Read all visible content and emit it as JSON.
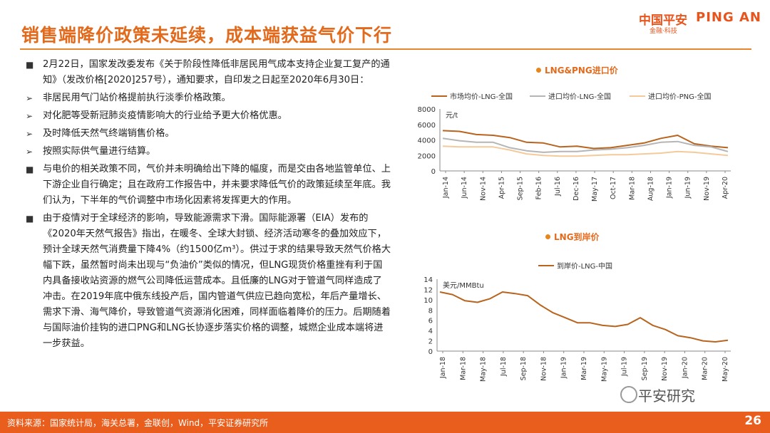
{
  "header": {
    "title": "销售端降价政策未延续，成本端获益气价下行",
    "logo_cn": "中国平安",
    "logo_en": "PING AN",
    "logo_sub": "金融·科技"
  },
  "content": {
    "items": [
      {
        "marker": "■",
        "text": "2月22日，国家发改委发布《关于阶段性降低非居民用气成本支持企业复工复产的通知》（发改价格[2020]257号），通知要求，自印发之日起至2020年6月30日："
      },
      {
        "marker": "➢",
        "text": "非居民用气门站价格提前执行淡季价格政策。"
      },
      {
        "marker": "➢",
        "text": "对化肥等受新冠肺炎疫情影响大的行业给予更大价格优惠。"
      },
      {
        "marker": "➢",
        "text": "及时降低天然气终端销售价格。"
      },
      {
        "marker": "➢",
        "text": "按照实际供气量进行结算。"
      },
      {
        "marker": "■",
        "text": "与电价的相关政策不同，气价并未明确给出下降的幅度，而是交由各地监管单位、上下游企业自行确定；且在政府工作报告中，并未要求降低气价的政策延续至年底。我们认为，下半年的气价调整中市场化因素将发挥更大的作用。"
      },
      {
        "marker": "■",
        "text": "由于疫情对于全球经济的影响，导致能源需求下滑。国际能源署（EIA）发布的《2020年天然气报告》指出，在暖冬、全球大封锁、经济活动寒冬的叠加效应下，预计全球天然气消费量下降4%（约1500亿m³）。供过于求的结果导致天然气价格大幅下跌，虽然暂时尚未出现与“负油价”类似的情况，但LNG现货价格重挫有利于国内具备接收站资源的燃气公司降低运营成本。且低廉的LNG对于管道气同样造成了冲击。在2019年底中俄东线投产后，国内管道气供应已趋向宽松，年后产量增长、需求下滑、海气降价，导致管道气资源消化困难，同样面临着降价的压力。后期随着与国际油价挂钩的进口PNG和LNG长协逐步落实价格的调整，城燃企业成本端将进一步获益。"
      }
    ]
  },
  "chart_data": [
    {
      "type": "line",
      "title": "LNG&PNG进口价",
      "ylabel": "元/t",
      "ylim": [
        0,
        8000
      ],
      "yticks": [
        0,
        2000,
        4000,
        6000,
        8000
      ],
      "xticks": [
        "Jan-14",
        "Jun-14",
        "Nov-14",
        "Apr-15",
        "Sep-15",
        "Feb-16",
        "Jul-16",
        "Dec-16",
        "May-17",
        "Oct-17",
        "Mar-18",
        "Aug-18",
        "Jan-19",
        "Jun-19",
        "Nov-19",
        "Apr-20"
      ],
      "series": [
        {
          "name": "市场均价-LNG-全国",
          "color": "#b8641e",
          "values": [
            5200,
            5100,
            4700,
            4600,
            4300,
            3700,
            3600,
            3100,
            3200,
            2900,
            3000,
            3300,
            3600,
            4200,
            4600,
            3500,
            3200,
            3000
          ]
        },
        {
          "name": "进口均价-LNG-全国",
          "color": "#b5b5b5",
          "values": [
            4200,
            3900,
            3700,
            3700,
            3000,
            2600,
            2400,
            2500,
            2500,
            2700,
            2800,
            3000,
            3300,
            3700,
            3800,
            3300,
            3100,
            2500
          ]
        },
        {
          "name": "进口均价-PNG-全国",
          "color": "#f4ca9b",
          "values": [
            3200,
            3100,
            3100,
            3100,
            2700,
            2200,
            2000,
            1900,
            1900,
            2000,
            2100,
            2100,
            2200,
            2300,
            2500,
            2400,
            2200,
            2000
          ]
        }
      ]
    },
    {
      "type": "line",
      "title": "LNG到岸价",
      "ylabel": "美元/MMBtu",
      "ylim": [
        0,
        14
      ],
      "yticks": [
        0,
        2,
        4,
        6,
        8,
        10,
        12,
        14
      ],
      "xticks": [
        "Jan-18",
        "Mar-18",
        "May-18",
        "Jul-18",
        "Sep-18",
        "Nov-18",
        "Jan-19",
        "Mar-19",
        "May-19",
        "Jul-19",
        "Sep-19",
        "Nov-19",
        "Jan-20",
        "Mar-20",
        "May-20"
      ],
      "series": [
        {
          "name": "到岸价-LNG-中国",
          "color": "#b8641e",
          "values": [
            11.5,
            11.0,
            9.8,
            9.5,
            10.2,
            11.5,
            11.2,
            10.8,
            9.0,
            7.5,
            6.5,
            5.5,
            5.5,
            5.0,
            4.8,
            5.2,
            6.5,
            5.0,
            4.2,
            3.0,
            2.6,
            2.0,
            1.8,
            2.1
          ]
        }
      ]
    }
  ],
  "footer": {
    "source": "资料来源：国家统计局，海关总署，金联创，Wind，平安证券研究所",
    "page": "26"
  },
  "watermark": "平安研究"
}
